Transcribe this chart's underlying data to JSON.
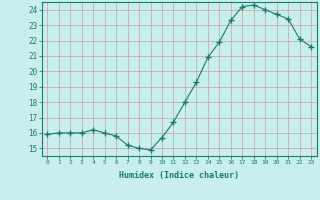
{
  "x": [
    0,
    1,
    2,
    3,
    4,
    5,
    6,
    7,
    8,
    9,
    10,
    11,
    12,
    13,
    14,
    15,
    16,
    17,
    18,
    19,
    20,
    21,
    22,
    23
  ],
  "y": [
    15.9,
    16.0,
    16.0,
    16.0,
    16.2,
    16.0,
    15.8,
    15.2,
    15.0,
    14.9,
    15.7,
    16.7,
    18.0,
    19.3,
    20.9,
    21.9,
    23.3,
    24.2,
    24.3,
    24.0,
    23.7,
    23.4,
    22.1,
    21.6
  ],
  "xlabel": "Humidex (Indice chaleur)",
  "xlim": [
    -0.5,
    23.5
  ],
  "ylim": [
    14.5,
    24.5
  ],
  "yticks": [
    15,
    16,
    17,
    18,
    19,
    20,
    21,
    22,
    23,
    24
  ],
  "xticks": [
    0,
    1,
    2,
    3,
    4,
    5,
    6,
    7,
    8,
    9,
    10,
    11,
    12,
    13,
    14,
    15,
    16,
    17,
    18,
    19,
    20,
    21,
    22,
    23
  ],
  "xtick_labels": [
    "0",
    "1",
    "2",
    "3",
    "4",
    "5",
    "6",
    "7",
    "8",
    "9",
    "10",
    "11",
    "12",
    "13",
    "14",
    "15",
    "16",
    "17",
    "18",
    "19",
    "20",
    "21",
    "22",
    "23"
  ],
  "line_color": "#1a7a6e",
  "marker_color": "#1a7a6e",
  "bg_color": "#c8eeee",
  "grid_color": "#c8a0a0",
  "axis_color": "#1a7a6e",
  "tick_color": "#1a7a6e",
  "label_color": "#1a7a6e"
}
